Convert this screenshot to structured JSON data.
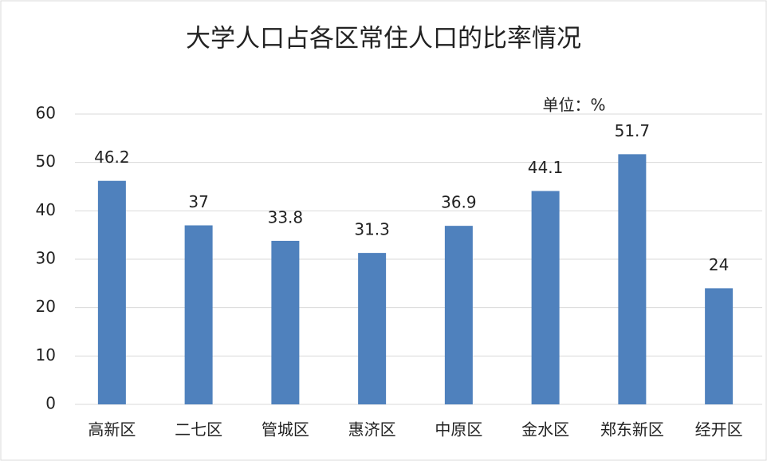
{
  "chart_data": {
    "type": "bar",
    "title": "大学人口占各区常住人口的比率情况",
    "annotation": "单位：%",
    "categories": [
      "高新区",
      "二七区",
      "管城区",
      "惠济区",
      "中原区",
      "金水区",
      "郑东新区",
      "经开区"
    ],
    "values": [
      46.2,
      37,
      33.8,
      31.3,
      36.9,
      44.1,
      51.7,
      24
    ],
    "color": "#4f81bd",
    "ylim": [
      0,
      60
    ],
    "yticks": [
      0,
      10,
      20,
      30,
      40,
      50,
      60
    ],
    "grid": true,
    "data_labels": true
  }
}
